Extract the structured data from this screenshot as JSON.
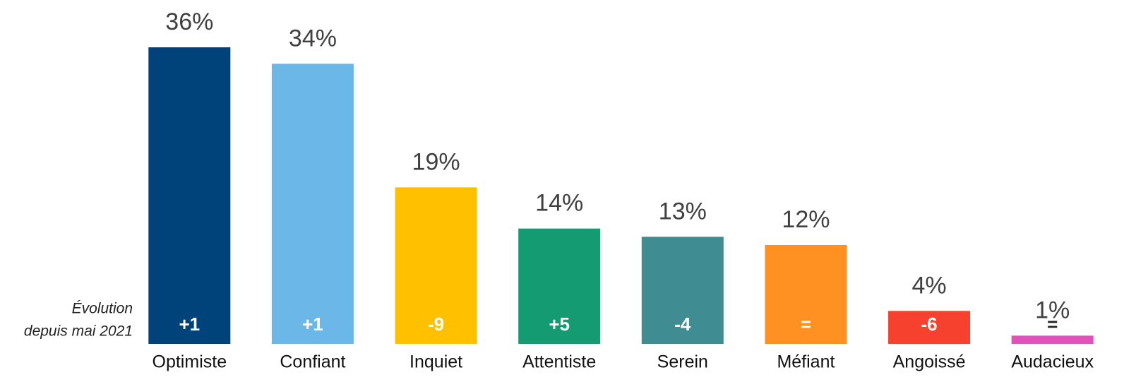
{
  "chart_data": {
    "type": "bar",
    "categories": [
      "Optimiste",
      "Confiant",
      "Inquiet",
      "Attentiste",
      "Serein",
      "Méfiant",
      "Angoissé",
      "Audacieux"
    ],
    "values": [
      36,
      34,
      19,
      14,
      13,
      12,
      4,
      1
    ],
    "value_labels": [
      "36%",
      "34%",
      "19%",
      "14%",
      "13%",
      "12%",
      "4%",
      "1%"
    ],
    "evolution": [
      "+1",
      "+1",
      "-9",
      "+5",
      "-4",
      "=",
      "-6",
      "="
    ],
    "annotation": [
      "Évolution",
      "depuis mai 2021"
    ],
    "colors": [
      "#00427a",
      "#6bb8e8",
      "#ffc000",
      "#149b72",
      "#3f8c93",
      "#ff9122",
      "#f5412d",
      "#e052b8"
    ],
    "ylim": [
      0,
      36
    ]
  }
}
